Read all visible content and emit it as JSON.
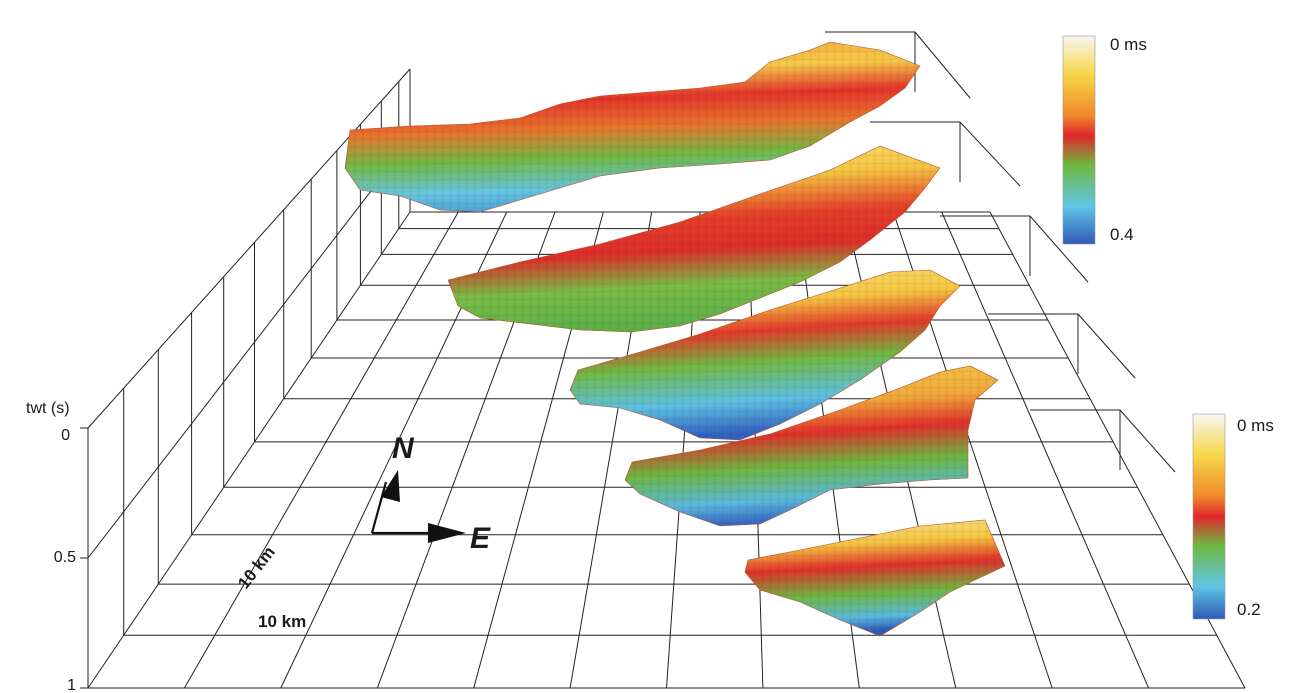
{
  "figure": {
    "axis": {
      "title": "twt (s)",
      "ticks": [
        "0",
        "0.5",
        "1"
      ]
    },
    "scale_bars": {
      "north_south": "10 km",
      "east_west": "10 km"
    },
    "compass": {
      "north": "N",
      "east": "E"
    },
    "colorbars": [
      {
        "top": "0 ms",
        "bottom": "0.4",
        "colors": [
          "#f7f7f4",
          "#f6d84a",
          "#f08a2a",
          "#e0262a",
          "#6fb83f",
          "#5fc6e6",
          "#2f58b6"
        ]
      },
      {
        "top": "0 ms",
        "bottom": "0.2",
        "colors": [
          "#f7f7f4",
          "#f6d84a",
          "#f08a2a",
          "#e0262a",
          "#6fb83f",
          "#5fc6e6",
          "#2f58b6"
        ]
      }
    ],
    "surfaces": [
      {
        "colors": [
          "#e8412a",
          "#f5c542",
          "#d8322a",
          "#6cb641",
          "#63c2df"
        ]
      },
      {
        "colors": [
          "#e8412a",
          "#f5c542",
          "#d8322a",
          "#6cb641",
          "#63c2df"
        ]
      },
      {
        "colors": [
          "#e8412a",
          "#f5c542",
          "#d8322a",
          "#6cb641",
          "#3a6cc4"
        ]
      },
      {
        "colors": [
          "#e8412a",
          "#f5c542",
          "#d8322a",
          "#6cb641",
          "#3a6cc4"
        ]
      },
      {
        "colors": [
          "#e8412a",
          "#f5c542",
          "#d8322a",
          "#6cb641",
          "#3a6cc4"
        ]
      }
    ]
  }
}
